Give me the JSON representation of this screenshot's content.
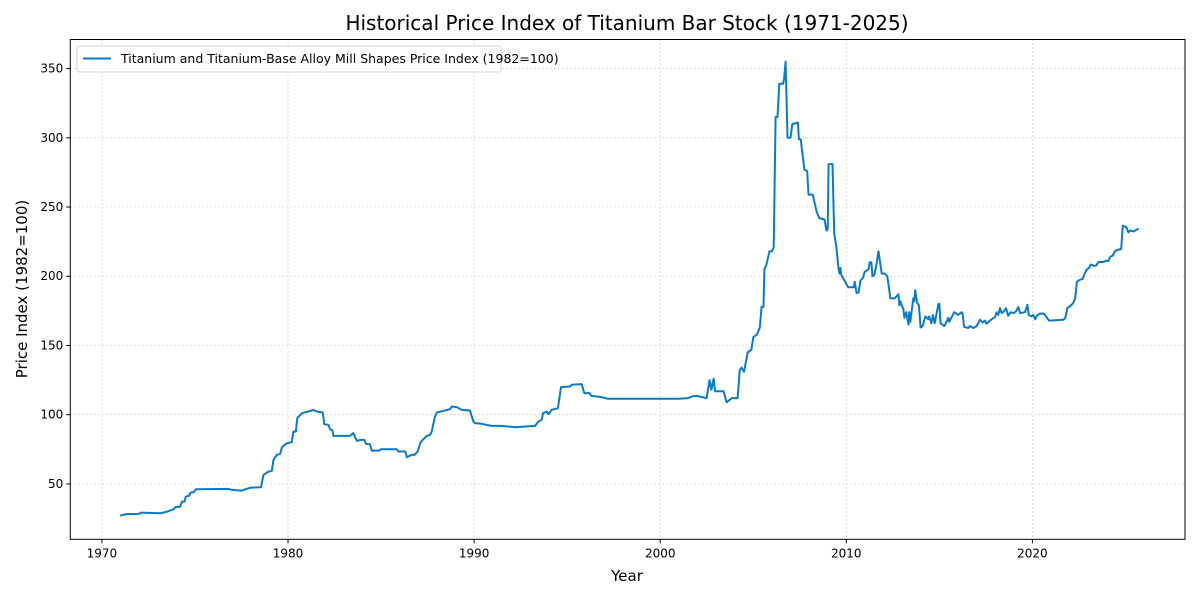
{
  "chart_data": {
    "type": "line",
    "title": "Historical Price Index of Titanium Bar Stock (1971-2025)",
    "xlabel": "Year",
    "ylabel": "Price Index (1982=100)",
    "xlim": [
      1968.3,
      2028.2
    ],
    "ylim": [
      10,
      371
    ],
    "xticks": [
      1970,
      1980,
      1990,
      2000,
      2010,
      2020
    ],
    "yticks": [
      50,
      100,
      150,
      200,
      250,
      300,
      350
    ],
    "grid": true,
    "legend_position": "top-left",
    "color": "#0a7bcc",
    "series": [
      {
        "name": "Titanium and Titanium-Base Alloy Mill Shapes Price Index (1982=100)",
        "points": [
          [
            1970.98,
            27.1
          ],
          [
            1971.34,
            28.3
          ],
          [
            1971.97,
            28.3
          ],
          [
            1972.1,
            29.3
          ],
          [
            1973.13,
            28.8
          ],
          [
            1973.5,
            30
          ],
          [
            1973.85,
            31.7
          ],
          [
            1973.94,
            33.2
          ],
          [
            1974.2,
            33.6
          ],
          [
            1974.3,
            37.2
          ],
          [
            1974.44,
            37.2
          ],
          [
            1974.5,
            40.8
          ],
          [
            1974.69,
            41.5
          ],
          [
            1974.76,
            43.7
          ],
          [
            1974.92,
            44
          ],
          [
            1975.06,
            46.2
          ],
          [
            1976.8,
            46.4
          ],
          [
            1976.98,
            45.7
          ],
          [
            1977.5,
            45.2
          ],
          [
            1977.97,
            47.3
          ],
          [
            1978.55,
            47.6
          ],
          [
            1978.68,
            56.5
          ],
          [
            1978.95,
            58.9
          ],
          [
            1979.13,
            59.4
          ],
          [
            1979.22,
            67.4
          ],
          [
            1979.4,
            71
          ],
          [
            1979.58,
            71.7
          ],
          [
            1979.67,
            76.5
          ],
          [
            1979.94,
            79.4
          ],
          [
            1980.2,
            80.2
          ],
          [
            1980.29,
            87.8
          ],
          [
            1980.42,
            87.8
          ],
          [
            1980.5,
            97.5
          ],
          [
            1980.74,
            101
          ],
          [
            1981.28,
            103
          ],
          [
            1981.36,
            103.5
          ],
          [
            1981.54,
            102.3
          ],
          [
            1981.87,
            101.6
          ],
          [
            1981.95,
            93.2
          ],
          [
            1982.17,
            92.7
          ],
          [
            1982.26,
            89.6
          ],
          [
            1982.39,
            88.6
          ],
          [
            1982.44,
            84.7
          ],
          [
            1983.33,
            84.7
          ],
          [
            1983.5,
            86.7
          ],
          [
            1983.7,
            81.1
          ],
          [
            1983.87,
            81.8
          ],
          [
            1984.1,
            81.8
          ],
          [
            1984.19,
            78.9
          ],
          [
            1984.4,
            78.7
          ],
          [
            1984.5,
            74.1
          ],
          [
            1984.9,
            74.1
          ],
          [
            1985.0,
            75.1
          ],
          [
            1985.84,
            75.1
          ],
          [
            1985.93,
            73.4
          ],
          [
            1986.3,
            73.4
          ],
          [
            1986.38,
            69.3
          ],
          [
            1986.65,
            71
          ],
          [
            1986.8,
            71
          ],
          [
            1986.97,
            73.4
          ],
          [
            1987.1,
            79.4
          ],
          [
            1987.2,
            81.3
          ],
          [
            1987.45,
            84.7
          ],
          [
            1987.63,
            85.4
          ],
          [
            1987.72,
            87.8
          ],
          [
            1987.9,
            98.7
          ],
          [
            1988.0,
            101.6
          ],
          [
            1988.43,
            103
          ],
          [
            1988.7,
            104
          ],
          [
            1988.8,
            105.9
          ],
          [
            1989.07,
            105.5
          ],
          [
            1989.33,
            103.5
          ],
          [
            1989.78,
            103
          ],
          [
            1989.96,
            95
          ],
          [
            1990.05,
            93.9
          ],
          [
            1990.4,
            93.4
          ],
          [
            1990.94,
            91.9
          ],
          [
            1991.48,
            91.9
          ],
          [
            1992.2,
            91
          ],
          [
            1993.27,
            91.9
          ],
          [
            1993.45,
            95
          ],
          [
            1993.63,
            96.3
          ],
          [
            1993.7,
            101.1
          ],
          [
            1993.9,
            102.3
          ],
          [
            1994.0,
            100.4
          ],
          [
            1994.17,
            103.5
          ],
          [
            1994.5,
            104.7
          ],
          [
            1994.67,
            119.9
          ],
          [
            1995.15,
            120.4
          ],
          [
            1995.24,
            121.6
          ],
          [
            1995.78,
            122.1
          ],
          [
            1995.92,
            115.6
          ],
          [
            1996.2,
            115.6
          ],
          [
            1996.3,
            113.6
          ],
          [
            1996.85,
            112.7
          ],
          [
            1997.2,
            111.5
          ],
          [
            1998.0,
            111.5
          ],
          [
            1999.0,
            111.5
          ],
          [
            2000.0,
            111.5
          ],
          [
            2001.0,
            111.5
          ],
          [
            2001.5,
            112
          ],
          [
            2001.8,
            113.5
          ],
          [
            2002.0,
            113.5
          ],
          [
            2002.2,
            112.9
          ],
          [
            2002.5,
            112
          ],
          [
            2002.65,
            125
          ],
          [
            2002.75,
            118
          ],
          [
            2002.87,
            126
          ],
          [
            2002.95,
            117
          ],
          [
            2003.4,
            117
          ],
          [
            2003.57,
            109
          ],
          [
            2003.85,
            112
          ],
          [
            2004.16,
            112
          ],
          [
            2004.27,
            132
          ],
          [
            2004.37,
            134
          ],
          [
            2004.5,
            131
          ],
          [
            2004.7,
            145
          ],
          [
            2004.9,
            147
          ],
          [
            2005.0,
            156
          ],
          [
            2005.2,
            158
          ],
          [
            2005.35,
            163
          ],
          [
            2005.45,
            178
          ],
          [
            2005.55,
            178
          ],
          [
            2005.6,
            205
          ],
          [
            2005.7,
            208
          ],
          [
            2005.87,
            218
          ],
          [
            2006.0,
            218
          ],
          [
            2006.1,
            221
          ],
          [
            2006.2,
            315
          ],
          [
            2006.3,
            315
          ],
          [
            2006.4,
            339
          ],
          [
            2006.6,
            339
          ],
          [
            2006.65,
            342
          ],
          [
            2006.74,
            355
          ],
          [
            2006.84,
            300
          ],
          [
            2007.0,
            300
          ],
          [
            2007.1,
            310
          ],
          [
            2007.4,
            311
          ],
          [
            2007.45,
            299
          ],
          [
            2007.55,
            299
          ],
          [
            2007.75,
            277
          ],
          [
            2007.9,
            276
          ],
          [
            2007.97,
            259
          ],
          [
            2008.2,
            259
          ],
          [
            2008.4,
            247
          ],
          [
            2008.55,
            242
          ],
          [
            2008.83,
            241
          ],
          [
            2008.93,
            233
          ],
          [
            2009.0,
            234
          ],
          [
            2009.05,
            281
          ],
          [
            2009.26,
            281
          ],
          [
            2009.35,
            231
          ],
          [
            2009.47,
            221
          ],
          [
            2009.57,
            207
          ],
          [
            2009.63,
            202
          ],
          [
            2009.68,
            206
          ],
          [
            2009.73,
            201
          ],
          [
            2009.9,
            197
          ],
          [
            2010.1,
            192
          ],
          [
            2010.4,
            192
          ],
          [
            2010.45,
            196
          ],
          [
            2010.55,
            188
          ],
          [
            2010.65,
            188
          ],
          [
            2010.76,
            197
          ],
          [
            2010.9,
            199
          ],
          [
            2010.98,
            203
          ],
          [
            2011.2,
            205
          ],
          [
            2011.25,
            210
          ],
          [
            2011.35,
            210
          ],
          [
            2011.4,
            200
          ],
          [
            2011.5,
            201
          ],
          [
            2011.6,
            207
          ],
          [
            2011.73,
            218
          ],
          [
            2011.9,
            202
          ],
          [
            2012.05,
            202
          ],
          [
            2012.2,
            200
          ],
          [
            2012.37,
            184
          ],
          [
            2012.6,
            184
          ],
          [
            2012.8,
            187
          ],
          [
            2012.85,
            179
          ],
          [
            2012.9,
            182
          ],
          [
            2013.07,
            176
          ],
          [
            2013.12,
            170
          ],
          [
            2013.22,
            174
          ],
          [
            2013.34,
            165
          ],
          [
            2013.38,
            174
          ],
          [
            2013.44,
            167
          ],
          [
            2013.6,
            184
          ],
          [
            2013.65,
            182
          ],
          [
            2013.7,
            190
          ],
          [
            2013.8,
            181
          ],
          [
            2013.9,
            179
          ],
          [
            2013.99,
            163
          ],
          [
            2014.1,
            164
          ],
          [
            2014.25,
            171
          ],
          [
            2014.4,
            169
          ],
          [
            2014.45,
            171
          ],
          [
            2014.57,
            166
          ],
          [
            2014.65,
            172
          ],
          [
            2014.75,
            166
          ],
          [
            2014.95,
            180
          ],
          [
            2015.0,
            180
          ],
          [
            2015.06,
            166
          ],
          [
            2015.27,
            164
          ],
          [
            2015.48,
            170
          ],
          [
            2015.53,
            167
          ],
          [
            2015.8,
            174
          ],
          [
            2016.0,
            172
          ],
          [
            2016.2,
            174
          ],
          [
            2016.25,
            173
          ],
          [
            2016.33,
            163.5
          ],
          [
            2016.55,
            162.6
          ],
          [
            2016.64,
            164
          ],
          [
            2016.83,
            162.6
          ],
          [
            2017.0,
            164
          ],
          [
            2017.19,
            168.6
          ],
          [
            2017.33,
            166.6
          ],
          [
            2017.45,
            168
          ],
          [
            2017.54,
            165.7
          ],
          [
            2017.72,
            168
          ],
          [
            2017.9,
            169.8
          ],
          [
            2017.99,
            170.5
          ],
          [
            2018.08,
            173.9
          ],
          [
            2018.17,
            172
          ],
          [
            2018.26,
            177
          ],
          [
            2018.35,
            173.4
          ],
          [
            2018.47,
            174.6
          ],
          [
            2018.58,
            177
          ],
          [
            2018.7,
            171.5
          ],
          [
            2018.84,
            174
          ],
          [
            2018.98,
            173.4
          ],
          [
            2019.12,
            174.6
          ],
          [
            2019.25,
            177.8
          ],
          [
            2019.34,
            173.4
          ],
          [
            2019.6,
            174
          ],
          [
            2019.73,
            179.4
          ],
          [
            2019.8,
            172
          ],
          [
            2019.96,
            171
          ],
          [
            2020.05,
            172
          ],
          [
            2020.15,
            169
          ],
          [
            2020.24,
            171.5
          ],
          [
            2020.4,
            173
          ],
          [
            2020.63,
            173
          ],
          [
            2020.76,
            170.5
          ],
          [
            2020.9,
            168
          ],
          [
            2021.67,
            168.6
          ],
          [
            2021.76,
            169.8
          ],
          [
            2021.88,
            177
          ],
          [
            2022.06,
            178.7
          ],
          [
            2022.2,
            180.7
          ],
          [
            2022.3,
            184
          ],
          [
            2022.39,
            196
          ],
          [
            2022.56,
            197.5
          ],
          [
            2022.7,
            198
          ],
          [
            2022.78,
            201
          ],
          [
            2022.92,
            204.7
          ],
          [
            2023.04,
            206
          ],
          [
            2023.14,
            208.4
          ],
          [
            2023.28,
            207.6
          ],
          [
            2023.42,
            207.6
          ],
          [
            2023.55,
            210.3
          ],
          [
            2023.82,
            210.3
          ],
          [
            2023.96,
            211.2
          ],
          [
            2024.08,
            211
          ],
          [
            2024.18,
            214
          ],
          [
            2024.32,
            215
          ],
          [
            2024.44,
            218
          ],
          [
            2024.57,
            219
          ],
          [
            2024.77,
            219.7
          ],
          [
            2024.86,
            236.5
          ],
          [
            2025.04,
            235.6
          ],
          [
            2025.16,
            231.7
          ],
          [
            2025.25,
            233
          ],
          [
            2025.43,
            232.4
          ],
          [
            2025.6,
            233.7
          ],
          [
            2025.72,
            234.2
          ]
        ]
      }
    ]
  }
}
